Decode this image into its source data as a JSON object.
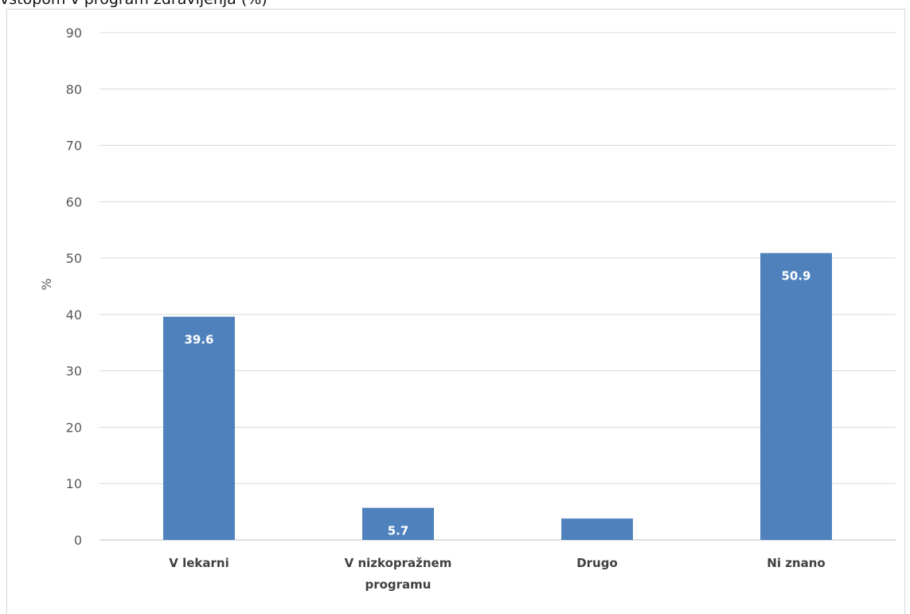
{
  "chart_data": {
    "type": "bar",
    "title": "vstopom v program zdravljenja (%)",
    "ylabel": "%",
    "xlabel": "",
    "ylim": [
      0,
      90
    ],
    "yticks": [
      0,
      10,
      20,
      30,
      40,
      50,
      60,
      70,
      80,
      90
    ],
    "grid": true,
    "categories": [
      [
        "V lekarni"
      ],
      [
        "V nizkopražnem",
        "programu"
      ],
      [
        "Drugo"
      ],
      [
        "Ni znano"
      ]
    ],
    "values": [
      39.6,
      5.7,
      3.8,
      50.9
    ],
    "data_labels": [
      "39.6",
      "5.7",
      "",
      "50.9"
    ],
    "colors": {
      "bar": "#4f81bd",
      "grid": "#d9d9d9",
      "axis": "#bfbfbf"
    }
  }
}
